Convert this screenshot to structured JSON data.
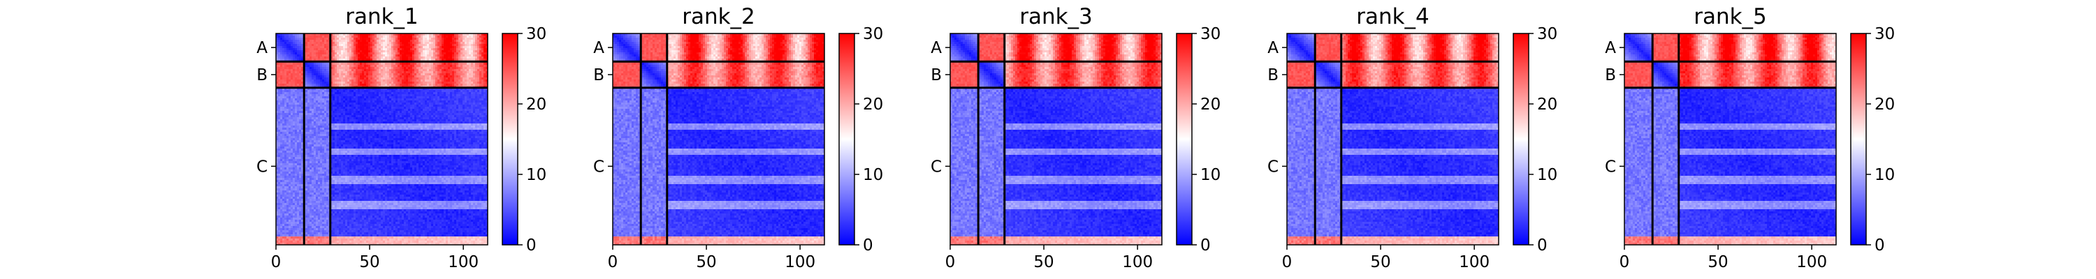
{
  "colorbar": {
    "min": 0,
    "max": 30,
    "ticks": [
      "0",
      "10",
      "20",
      "30"
    ],
    "colors": [
      "#0000ff",
      "#ffffff",
      "#ff0000"
    ]
  },
  "chart_data": [
    {
      "type": "heatmap",
      "title": "rank_1",
      "chains": [
        "A",
        "B",
        "C"
      ],
      "chain_boundaries": [
        0,
        15,
        29,
        113
      ],
      "xticks": [
        "0",
        "50",
        "100"
      ],
      "xlim": [
        0,
        113
      ],
      "value_range": [
        0,
        30
      ],
      "inter_chain_AB_level": "high",
      "inter_chain_AC_level": "high",
      "inter_chain_BC_level": "high",
      "intra_chain_level": "low"
    },
    {
      "type": "heatmap",
      "title": "rank_2",
      "chains": [
        "A",
        "B",
        "C"
      ],
      "chain_boundaries": [
        0,
        15,
        29,
        113
      ],
      "xticks": [
        "0",
        "50",
        "100"
      ],
      "xlim": [
        0,
        113
      ],
      "value_range": [
        0,
        30
      ],
      "inter_chain_AB_level": "high",
      "inter_chain_AC_level": "high",
      "inter_chain_BC_level": "high",
      "intra_chain_level": "low"
    },
    {
      "type": "heatmap",
      "title": "rank_3",
      "chains": [
        "A",
        "B",
        "C"
      ],
      "chain_boundaries": [
        0,
        15,
        29,
        113
      ],
      "xticks": [
        "0",
        "50",
        "100"
      ],
      "xlim": [
        0,
        113
      ],
      "value_range": [
        0,
        30
      ],
      "inter_chain_AB_level": "high",
      "inter_chain_AC_level": "high",
      "inter_chain_BC_level": "high",
      "intra_chain_level": "low"
    },
    {
      "type": "heatmap",
      "title": "rank_4",
      "chains": [
        "A",
        "B",
        "C"
      ],
      "chain_boundaries": [
        0,
        15,
        29,
        113
      ],
      "xticks": [
        "0",
        "50",
        "100"
      ],
      "xlim": [
        0,
        113
      ],
      "value_range": [
        0,
        30
      ],
      "inter_chain_AB_level": "high",
      "inter_chain_AC_level": "high",
      "inter_chain_BC_level": "high",
      "intra_chain_level": "low"
    },
    {
      "type": "heatmap",
      "title": "rank_5",
      "chains": [
        "A",
        "B",
        "C"
      ],
      "chain_boundaries": [
        0,
        15,
        29,
        113
      ],
      "xticks": [
        "0",
        "50",
        "100"
      ],
      "xlim": [
        0,
        113
      ],
      "value_range": [
        0,
        30
      ],
      "inter_chain_AB_level": "high",
      "inter_chain_AC_level": "high",
      "inter_chain_BC_level": "high",
      "intra_chain_level": "low"
    }
  ]
}
